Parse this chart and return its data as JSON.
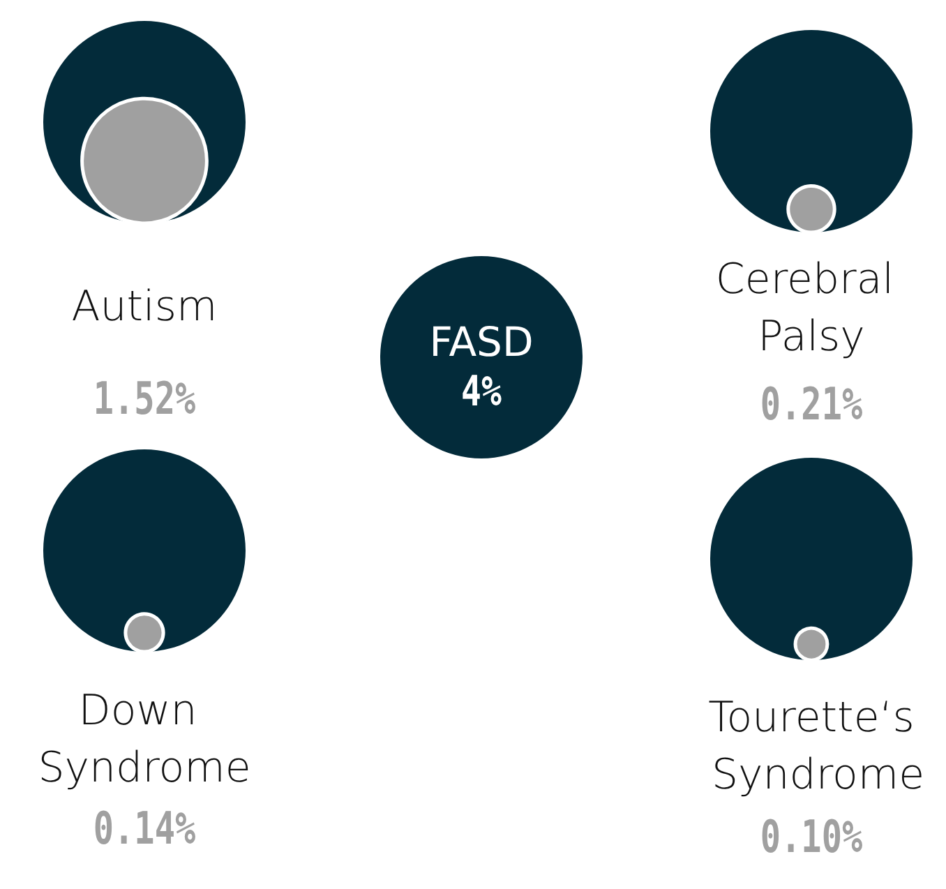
{
  "chart_data": {
    "type": "other",
    "categories": [
      "FASD",
      "Autism",
      "Cerebral Palsy",
      "Down Syndrome",
      "Tourette‘s Syndrome"
    ],
    "values": [
      4,
      1.52,
      0.21,
      0.14,
      0.1
    ],
    "value_labels": [
      "4%",
      "1.52%",
      "0.21%",
      "0.14%",
      "0.10%"
    ],
    "colors": [
      "#032b3a",
      "#a0a0a0",
      "#a0a0a0",
      "#a0a0a0",
      "#a0a0a0"
    ]
  }
}
